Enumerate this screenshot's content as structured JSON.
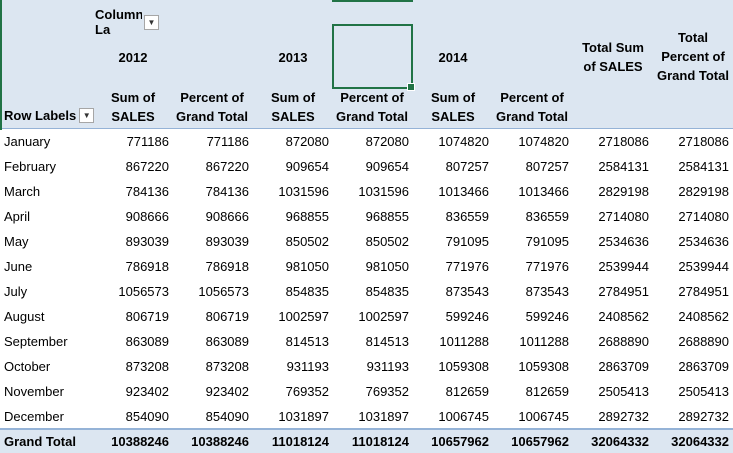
{
  "pivot": {
    "column_labels": "Column La",
    "row_labels": "Row Labels",
    "years": [
      "2012",
      "2013",
      "2014"
    ],
    "sub_headers": {
      "sum_line1": "Sum of",
      "sum_line2": "SALES",
      "pct_line1": "Percent of",
      "pct_line2": "Grand Total"
    },
    "total_sum": {
      "line1": "Total Sum",
      "line2": "of SALES"
    },
    "total_pct": {
      "line1": "Total",
      "line2": "Percent of",
      "line3": "Grand Total"
    },
    "rows": [
      {
        "label": "January",
        "v": [
          "771186",
          "771186",
          "872080",
          "872080",
          "1074820",
          "1074820",
          "2718086",
          "2718086"
        ]
      },
      {
        "label": "February",
        "v": [
          "867220",
          "867220",
          "909654",
          "909654",
          "807257",
          "807257",
          "2584131",
          "2584131"
        ]
      },
      {
        "label": "March",
        "v": [
          "784136",
          "784136",
          "1031596",
          "1031596",
          "1013466",
          "1013466",
          "2829198",
          "2829198"
        ]
      },
      {
        "label": "April",
        "v": [
          "908666",
          "908666",
          "968855",
          "968855",
          "836559",
          "836559",
          "2714080",
          "2714080"
        ]
      },
      {
        "label": "May",
        "v": [
          "893039",
          "893039",
          "850502",
          "850502",
          "791095",
          "791095",
          "2534636",
          "2534636"
        ]
      },
      {
        "label": "June",
        "v": [
          "786918",
          "786918",
          "981050",
          "981050",
          "771976",
          "771976",
          "2539944",
          "2539944"
        ]
      },
      {
        "label": "July",
        "v": [
          "1056573",
          "1056573",
          "854835",
          "854835",
          "873543",
          "873543",
          "2784951",
          "2784951"
        ]
      },
      {
        "label": "August",
        "v": [
          "806719",
          "806719",
          "1002597",
          "1002597",
          "599246",
          "599246",
          "2408562",
          "2408562"
        ]
      },
      {
        "label": "September",
        "v": [
          "863089",
          "863089",
          "814513",
          "814513",
          "1011288",
          "1011288",
          "2688890",
          "2688890"
        ]
      },
      {
        "label": "October",
        "v": [
          "873208",
          "873208",
          "931193",
          "931193",
          "1059308",
          "1059308",
          "2863709",
          "2863709"
        ]
      },
      {
        "label": "November",
        "v": [
          "923402",
          "923402",
          "769352",
          "769352",
          "812659",
          "812659",
          "2505413",
          "2505413"
        ]
      },
      {
        "label": "December",
        "v": [
          "854090",
          "854090",
          "1031897",
          "1031897",
          "1006745",
          "1006745",
          "2892732",
          "2892732"
        ]
      }
    ],
    "grand_total": {
      "label": "Grand Total",
      "v": [
        "10388246",
        "10388246",
        "11018124",
        "11018124",
        "10657962",
        "10657962",
        "32064332",
        "32064332"
      ]
    }
  },
  "colors": {
    "header_band": "#dce6f1",
    "selection_green": "#217346",
    "rule_blue": "#95b3d7"
  },
  "icons": {
    "column_dropdown": "filter-dropdown-icon",
    "row_dropdown": "filter-dropdown-icon"
  }
}
